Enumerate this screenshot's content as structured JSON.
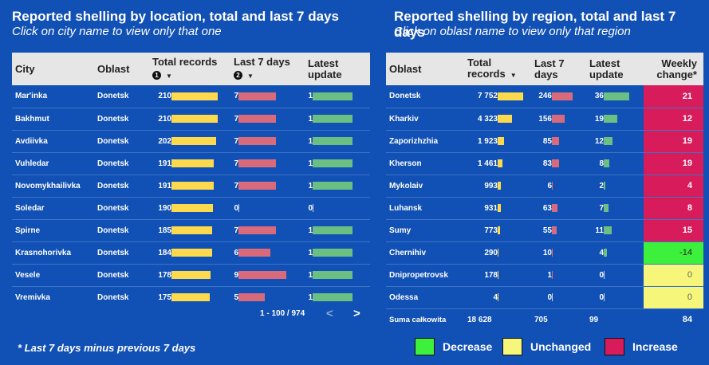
{
  "left_panel": {
    "title": "Reported shelling by location, total and last 7 days",
    "subtitle": "Click on city name to view only that one",
    "headers": {
      "city": "City",
      "oblast": "Oblast",
      "total": "Total records",
      "total_badge": "1",
      "last7": "Last 7 days",
      "last7_badge": "2",
      "latest": "Latest update"
    },
    "rows": [
      {
        "city": "Mar'inka",
        "oblast": "Donetsk",
        "total": 210,
        "last7": 7,
        "latest": 1
      },
      {
        "city": "Bakhmut",
        "oblast": "Donetsk",
        "total": 210,
        "last7": 7,
        "latest": 1
      },
      {
        "city": "Avdiivka",
        "oblast": "Donetsk",
        "total": 202,
        "last7": 7,
        "latest": 1
      },
      {
        "city": "Vuhledar",
        "oblast": "Donetsk",
        "total": 191,
        "last7": 7,
        "latest": 1
      },
      {
        "city": "Novomykhailivka",
        "oblast": "Donetsk",
        "total": 191,
        "last7": 7,
        "latest": 1
      },
      {
        "city": "Soledar",
        "oblast": "Donetsk",
        "total": 190,
        "last7": 0,
        "latest": 0
      },
      {
        "city": "Spirne",
        "oblast": "Donetsk",
        "total": 185,
        "last7": 7,
        "latest": 1
      },
      {
        "city": "Krasnohorivka",
        "oblast": "Donetsk",
        "total": 184,
        "last7": 6,
        "latest": 1
      },
      {
        "city": "Vesele",
        "oblast": "Donetsk",
        "total": 178,
        "last7": 9,
        "latest": 1
      },
      {
        "city": "Vremivka",
        "oblast": "Donetsk",
        "total": 175,
        "last7": 5,
        "latest": 1
      }
    ],
    "pager": "1 - 100 / 974"
  },
  "right_panel": {
    "title": "Reported shelling by region, total and last 7 days",
    "subtitle": "Click on oblast name to view only that region",
    "headers": {
      "oblast": "Oblast",
      "total": "Total records",
      "last7": "Last 7 days",
      "latest": "Latest update",
      "change": "Weekly change*"
    },
    "rows": [
      {
        "oblast": "Donetsk",
        "total": "7 752",
        "total_v": 7752,
        "last7": 246,
        "latest": 36,
        "change": "21",
        "status": "increase"
      },
      {
        "oblast": "Kharkiv",
        "total": "4 323",
        "total_v": 4323,
        "last7": 156,
        "latest": 19,
        "change": "12",
        "status": "increase"
      },
      {
        "oblast": "Zaporizhzhia",
        "total": "1 923",
        "total_v": 1923,
        "last7": 85,
        "latest": 12,
        "change": "19",
        "status": "increase"
      },
      {
        "oblast": "Kherson",
        "total": "1 461",
        "total_v": 1461,
        "last7": 83,
        "latest": 8,
        "change": "19",
        "status": "increase"
      },
      {
        "oblast": "Mykolaiv",
        "total": "993",
        "total_v": 993,
        "last7": 6,
        "latest": 2,
        "change": "4",
        "status": "increase"
      },
      {
        "oblast": "Luhansk",
        "total": "931",
        "total_v": 931,
        "last7": 63,
        "latest": 7,
        "change": "8",
        "status": "increase"
      },
      {
        "oblast": "Sumy",
        "total": "773",
        "total_v": 773,
        "last7": 55,
        "latest": 11,
        "change": "15",
        "status": "increase"
      },
      {
        "oblast": "Chernihiv",
        "total": "290",
        "total_v": 290,
        "last7": 10,
        "latest": 4,
        "change": "-14",
        "status": "decrease"
      },
      {
        "oblast": "Dnipropetrovsk",
        "total": "178",
        "total_v": 178,
        "last7": 1,
        "latest": 0,
        "change": "0",
        "status": "unchanged"
      },
      {
        "oblast": "Odessa",
        "total": "4",
        "total_v": 4,
        "last7": 0,
        "latest": 0,
        "change": "0",
        "status": "unchanged"
      }
    ],
    "summary": {
      "label": "Suma całkowita",
      "total": "18 628",
      "last7": "705",
      "latest": "99",
      "change": "84"
    }
  },
  "footnote": "* Last 7 days minus previous 7 days",
  "legend": [
    {
      "label": "Decrease",
      "color": "#3cf03c"
    },
    {
      "label": "Unchanged",
      "color": "#f6f67a"
    },
    {
      "label": "Increase",
      "color": "#d81b5a"
    }
  ],
  "colors": {
    "background": "#1150b4",
    "total_bar": "#fdd94d",
    "last7_bar": "#d96a7c",
    "latest_bar": "#6bbf83",
    "increase": "#d81b5a",
    "decrease": "#3cf03c",
    "unchanged": "#f6f67a"
  }
}
